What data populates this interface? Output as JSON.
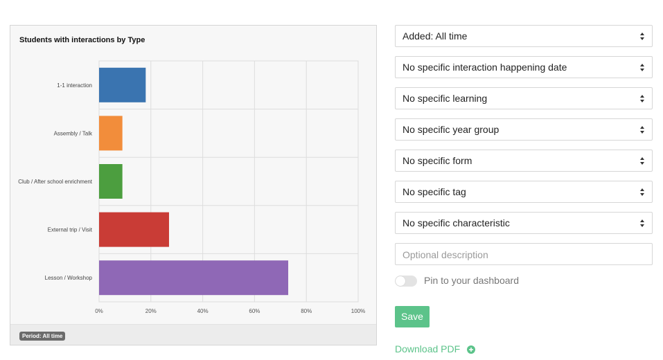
{
  "chart_data": {
    "type": "bar",
    "orientation": "horizontal",
    "title": "Students with interactions by Type",
    "categories": [
      "1-1 interaction",
      "Assembly / Talk",
      "Club / After school enrichment",
      "External trip / Visit",
      "Lesson / Workshop"
    ],
    "values": [
      18,
      9,
      9,
      27,
      73
    ],
    "colors": [
      "#3a74b0",
      "#f28d3b",
      "#4c9e3f",
      "#c93c36",
      "#8f68b6"
    ],
    "xlim": [
      0,
      100
    ],
    "xticks": [
      "0%",
      "20%",
      "40%",
      "60%",
      "80%",
      "100%"
    ],
    "grid": true,
    "xlabel": "",
    "ylabel": ""
  },
  "chart_footer": {
    "period_label": "Period: All time"
  },
  "filters": {
    "selects": [
      "Added: All time",
      "No specific interaction happening date",
      "No specific learning",
      "No specific year group",
      "No specific form",
      "No specific tag",
      "No specific characteristic"
    ],
    "description_placeholder": "Optional description",
    "pin_label": "Pin to your dashboard",
    "pin_enabled": false,
    "save_label": "Save",
    "download_label": "Download PDF",
    "download_icon": "plus-circle-icon",
    "accent_color": "#5cc38a"
  }
}
